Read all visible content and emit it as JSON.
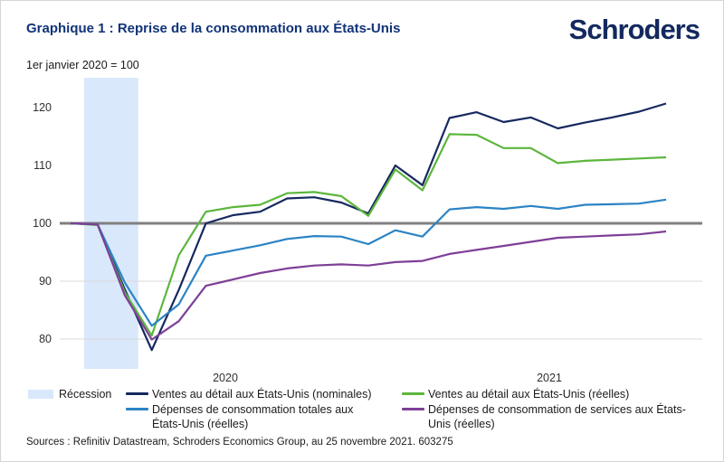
{
  "header": {
    "title": "Graphique 1 : Reprise de la consommation aux États-Unis",
    "logo": "Schroders",
    "subtitle": "1er janvier 2020 = 100"
  },
  "chart_data": {
    "type": "line",
    "x_unit": "month",
    "x": [
      "2020-01",
      "2020-02",
      "2020-03",
      "2020-04",
      "2020-05",
      "2020-06",
      "2020-07",
      "2020-08",
      "2020-09",
      "2020-10",
      "2020-11",
      "2020-12",
      "2021-01",
      "2021-02",
      "2021-03",
      "2021-04",
      "2021-05",
      "2021-06",
      "2021-07",
      "2021-08",
      "2021-09",
      "2021-10",
      "2021-11"
    ],
    "series": [
      {
        "name": "Ventes au détail aux États-Unis (nominales)",
        "color": "#16295f",
        "values": [
          100,
          99.8,
          88.6,
          78.1,
          88.5,
          100.0,
          101.4,
          102.0,
          104.3,
          104.5,
          103.6,
          101.7,
          110.0,
          106.6,
          118.2,
          119.2,
          117.5,
          118.3,
          116.4,
          117.4,
          118.3,
          119.3,
          120.7
        ]
      },
      {
        "name": "Ventes au détail aux États-Unis (réelles)",
        "color": "#5cb63c",
        "values": [
          100,
          99.7,
          88.1,
          80.6,
          94.5,
          102.0,
          102.8,
          103.2,
          105.2,
          105.4,
          104.7,
          101.3,
          109.3,
          105.7,
          115.4,
          115.3,
          113.0,
          113.0,
          110.4,
          110.8,
          111.0,
          111.2,
          111.4
        ]
      },
      {
        "name": "Dépenses de consommation totales aux États-Unis (réelles)",
        "color": "#2b83c4",
        "values": [
          100,
          99.8,
          89.8,
          82.3,
          86.0,
          94.4,
          95.3,
          96.2,
          97.3,
          97.8,
          97.7,
          96.4,
          98.8,
          97.7,
          102.4,
          102.8,
          102.5,
          103.0,
          102.5,
          103.2,
          103.3,
          103.4,
          104.1
        ]
      },
      {
        "name": "Dépenses de consommation de services aux États-Unis (réelles)",
        "color": "#7e3f97",
        "values": [
          100,
          99.8,
          87.6,
          79.9,
          83.1,
          89.2,
          90.3,
          91.4,
          92.2,
          92.7,
          92.9,
          92.7,
          93.3,
          93.5,
          94.7,
          95.4,
          96.1,
          96.8,
          97.5,
          97.7,
          97.9,
          98.1,
          98.6
        ]
      }
    ],
    "recession_band": {
      "label": "Récession",
      "color": "#d9e8fa",
      "from": "2020-02",
      "to": "2020-04"
    },
    "baseline": {
      "value": 100,
      "color": "#808080"
    },
    "yticks": [
      120,
      110,
      100,
      90,
      80
    ],
    "gridlines": [
      90,
      80
    ],
    "xticks": [
      "2020",
      "2021"
    ],
    "ylim": [
      75,
      125
    ],
    "legend_position": "bottom"
  },
  "footer": {
    "sources": "Sources : Refinitiv Datastream, Schroders Economics Group, au 25 novembre 2021. 603275"
  }
}
